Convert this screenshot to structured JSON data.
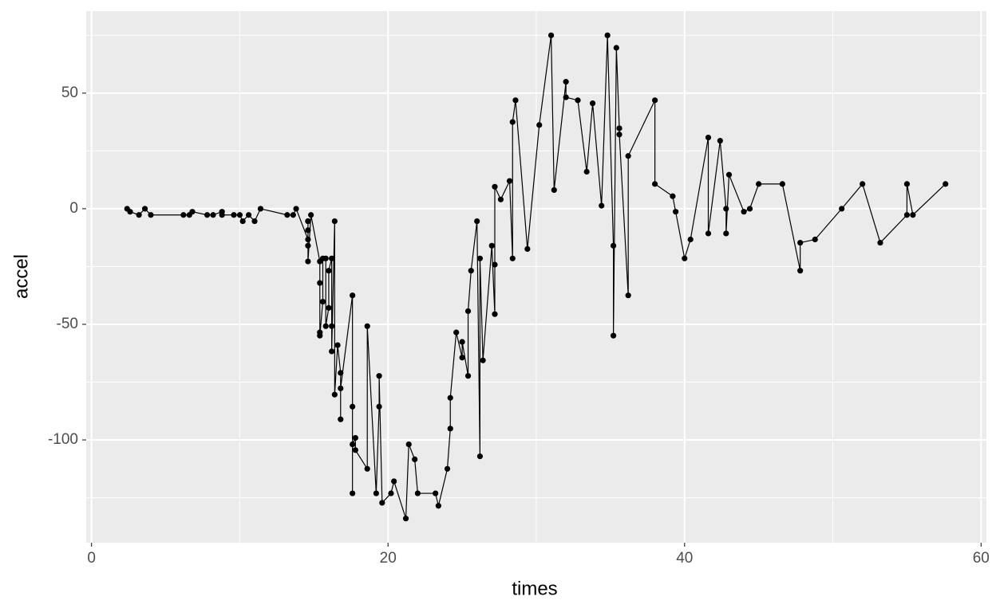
{
  "chart_data": {
    "type": "line",
    "x_label": "times",
    "y_label": "accel",
    "x": [
      2.4,
      2.6,
      3.2,
      3.6,
      4.0,
      6.2,
      6.6,
      6.8,
      7.8,
      8.2,
      8.8,
      8.8,
      9.6,
      10.0,
      10.2,
      10.6,
      11.0,
      11.4,
      13.2,
      13.6,
      13.8,
      14.6,
      14.6,
      14.6,
      14.6,
      14.6,
      14.6,
      14.8,
      15.4,
      15.4,
      15.4,
      15.4,
      15.6,
      15.6,
      15.8,
      15.8,
      16.0,
      16.0,
      16.2,
      16.2,
      16.2,
      16.4,
      16.4,
      16.6,
      16.8,
      16.8,
      16.8,
      17.6,
      17.6,
      17.6,
      17.6,
      17.8,
      17.8,
      18.6,
      18.6,
      19.2,
      19.4,
      19.4,
      19.6,
      20.2,
      20.4,
      21.2,
      21.4,
      21.8,
      22.0,
      23.2,
      23.4,
      24.0,
      24.2,
      24.2,
      24.6,
      25.0,
      25.0,
      25.4,
      25.4,
      25.6,
      26.0,
      26.2,
      26.2,
      26.4,
      27.0,
      27.2,
      27.2,
      27.2,
      27.6,
      28.2,
      28.4,
      28.4,
      28.6,
      29.4,
      30.2,
      31.0,
      31.2,
      32.0,
      32.0,
      32.8,
      33.4,
      33.8,
      34.4,
      34.8,
      35.2,
      35.2,
      35.4,
      35.6,
      35.6,
      36.2,
      36.2,
      38.0,
      38.0,
      39.2,
      39.4,
      40.0,
      40.4,
      41.6,
      41.6,
      42.4,
      42.8,
      42.8,
      43.0,
      44.0,
      44.4,
      45.0,
      46.6,
      47.8,
      47.8,
      48.8,
      50.6,
      52.0,
      53.2,
      55.0,
      55.0,
      55.4,
      57.6
    ],
    "series": [
      {
        "color": "#000000",
        "values": [
          0.0,
          -1.3,
          -2.7,
          0.0,
          -2.7,
          -2.7,
          -2.7,
          -1.3,
          -2.7,
          -2.7,
          -1.3,
          -2.7,
          -2.7,
          -2.7,
          -5.4,
          -2.7,
          -5.4,
          0.0,
          -2.7,
          -2.7,
          0.0,
          -13.3,
          -5.4,
          -5.4,
          -9.3,
          -16.0,
          -22.8,
          -2.7,
          -22.8,
          -32.1,
          -53.5,
          -54.9,
          -40.2,
          -21.5,
          -21.5,
          -50.8,
          -42.9,
          -26.8,
          -21.5,
          -50.8,
          -61.7,
          -5.4,
          -80.4,
          -59.0,
          -71.0,
          -91.1,
          -77.7,
          -37.5,
          -85.6,
          -123.1,
          -101.9,
          -99.1,
          -104.4,
          -112.5,
          -50.8,
          -123.1,
          -85.6,
          -72.3,
          -127.2,
          -123.1,
          -117.9,
          -134.0,
          -101.9,
          -108.4,
          -123.1,
          -123.1,
          -128.5,
          -112.5,
          -95.1,
          -81.8,
          -53.5,
          -64.4,
          -57.6,
          -72.3,
          -44.3,
          -26.8,
          -5.4,
          -107.1,
          -21.5,
          -65.6,
          -16.0,
          -45.6,
          -24.2,
          9.5,
          4.0,
          12.0,
          -21.5,
          37.5,
          46.9,
          -17.4,
          36.2,
          75.0,
          8.1,
          54.9,
          48.2,
          46.9,
          16.0,
          45.6,
          1.3,
          75.0,
          -16.0,
          -54.9,
          69.6,
          34.8,
          32.1,
          -37.5,
          22.8,
          46.9,
          10.7,
          5.4,
          -1.3,
          -21.5,
          -13.3,
          30.8,
          -10.7,
          29.4,
          0.0,
          -10.7,
          14.7,
          -1.3,
          0.0,
          10.7,
          10.7,
          -26.8,
          -14.7,
          -13.3,
          0.0,
          10.7,
          -14.7,
          -2.7,
          10.7,
          -2.7,
          10.7
        ]
      }
    ],
    "xlim": [
      -0.36,
      60.36
    ],
    "ylim": [
      -144.45,
      85.45
    ],
    "xticks": [
      0,
      20,
      40,
      60
    ],
    "yticks": [
      -100,
      -50,
      0,
      50
    ],
    "x_minor_ticks": [
      10,
      30,
      50
    ],
    "y_minor_ticks": [
      -125,
      -75,
      -25,
      25,
      75
    ],
    "grid": true,
    "markers": true
  }
}
